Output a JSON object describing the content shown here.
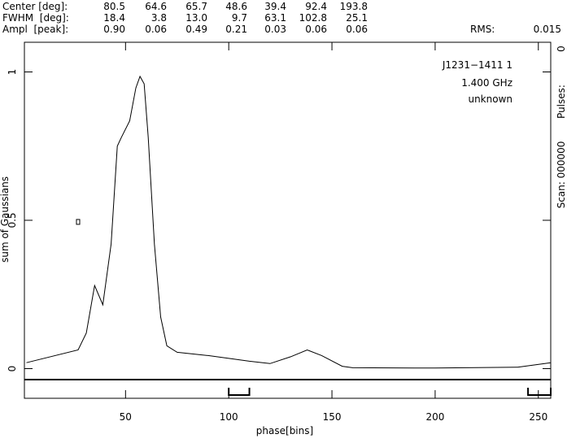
{
  "header": {
    "rows": [
      {
        "label": "Center [deg]:",
        "values": [
          "80.5",
          "64.6",
          "65.7",
          "48.6",
          "39.4",
          "92.4",
          "193.8"
        ]
      },
      {
        "label": "FWHM  [deg]:",
        "values": [
          "18.4",
          "3.8",
          "13.0",
          "9.7",
          "63.1",
          "102.8",
          "25.1"
        ]
      },
      {
        "label": "Ampl  [peak]:",
        "values": [
          "0.90",
          "0.06",
          "0.49",
          "0.21",
          "0.03",
          "0.06",
          "0.06"
        ]
      }
    ],
    "rms_label": "RMS:",
    "rms": "0.015"
  },
  "side": {
    "top": "0",
    "pulses": "Pulses:",
    "scan": "Scan: 000000"
  },
  "chart_data": {
    "type": "line",
    "xlabel": "phase[bins]",
    "ylabel": "sum of Gaussians",
    "annotations": [
      "J1231−1411 1",
      "1.400 GHz",
      "unknown"
    ],
    "x": [
      2,
      27,
      31,
      35,
      39,
      43,
      46,
      48,
      52,
      55,
      57,
      59,
      61,
      64,
      67,
      70,
      75,
      90,
      110,
      120,
      130,
      138,
      145,
      155,
      160,
      200,
      240,
      256
    ],
    "series": [
      {
        "name": "profile",
        "color": "#000000",
        "values": [
          0.02,
          0.063,
          0.12,
          0.28,
          0.215,
          0.42,
          0.75,
          0.78,
          0.835,
          0.946,
          0.985,
          0.96,
          0.78,
          0.42,
          0.174,
          0.077,
          0.055,
          0.044,
          0.025,
          0.017,
          0.04,
          0.063,
          0.044,
          0.008,
          0.003,
          0.002,
          0.005,
          0.02
        ]
      }
    ],
    "xlim": [
      1,
      256
    ],
    "xticks": [
      50,
      100,
      150,
      200,
      250
    ],
    "ylim": [
      -0.1,
      1.1
    ],
    "yticks": [
      0,
      0.5,
      1
    ],
    "regions": [
      [
        100,
        110
      ],
      [
        245,
        256
      ]
    ]
  }
}
